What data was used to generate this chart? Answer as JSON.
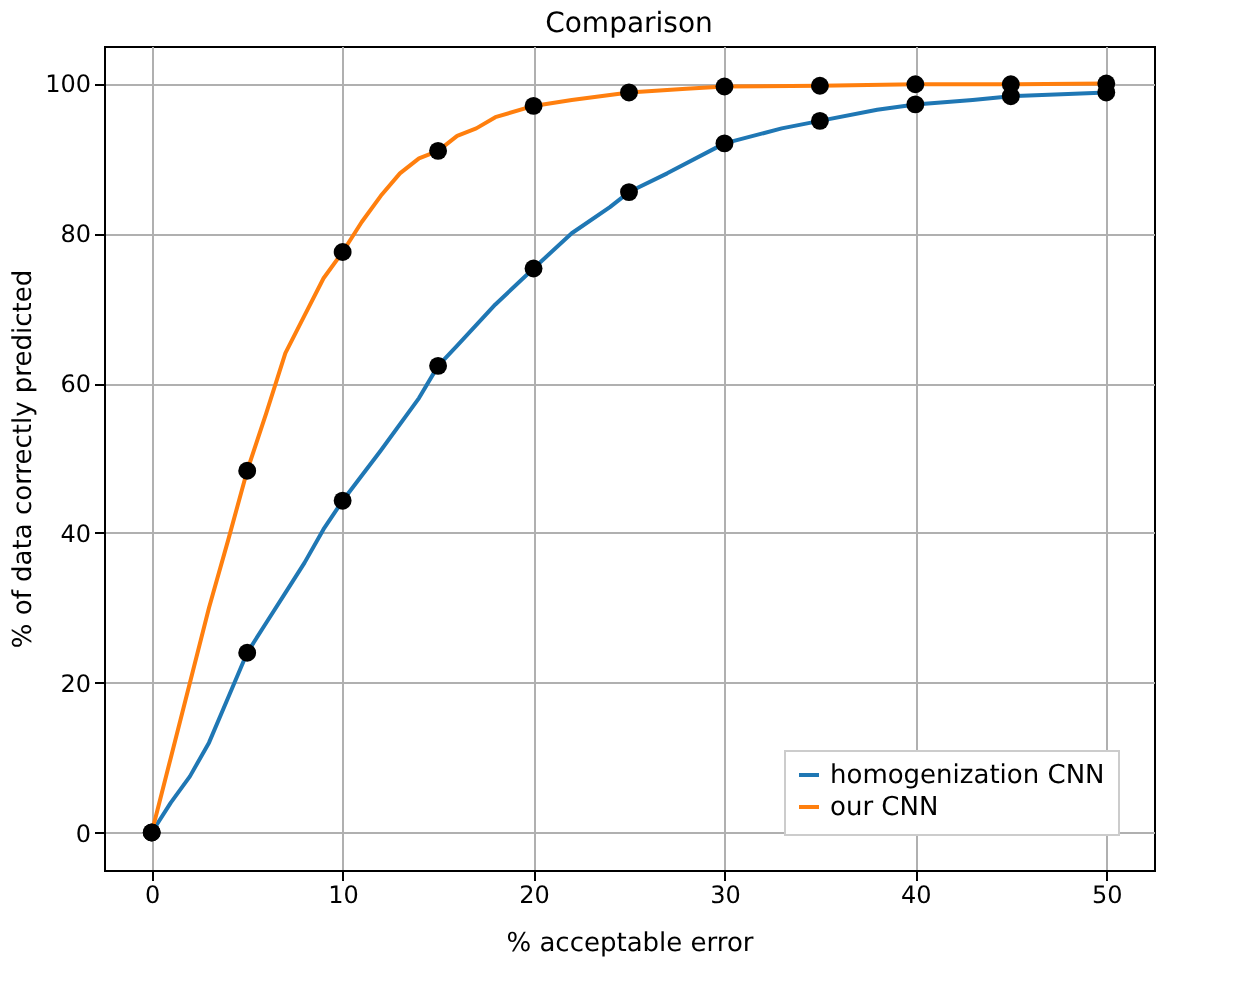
{
  "chart_data": {
    "type": "line",
    "title": "Comparison",
    "xlabel": "% acceptable error",
    "ylabel": "% of data correctly predicted",
    "xlim": [
      -2.5,
      52.5
    ],
    "ylim": [
      -5,
      105
    ],
    "xticks": [
      0,
      10,
      20,
      30,
      40,
      50
    ],
    "yticks": [
      0,
      20,
      40,
      60,
      80,
      100
    ],
    "grid": true,
    "legend": "bottom right",
    "series": [
      {
        "name": "homogenization CNN",
        "color": "#1f77b4",
        "marker": "none",
        "x": [
          0,
          1,
          2,
          3,
          4,
          5,
          6,
          7,
          8,
          9,
          10,
          12,
          14,
          15,
          16,
          18,
          20,
          22,
          24,
          25,
          27,
          30,
          33,
          35,
          38,
          40,
          43,
          45,
          48,
          50
        ],
        "values": [
          0,
          4,
          7.5,
          12,
          18,
          24,
          28,
          32,
          36,
          40.5,
          44.3,
          51,
          58,
          62.3,
          65,
          70.5,
          75.3,
          80,
          83.5,
          85.5,
          88,
          92,
          94,
          95,
          96.5,
          97.2,
          97.8,
          98.3,
          98.6,
          98.8
        ]
      },
      {
        "name": "our CNN",
        "color": "#ff7f0e",
        "marker": "none",
        "x": [
          0,
          1,
          2,
          3,
          4,
          5,
          6,
          7,
          8,
          9,
          10,
          11,
          12,
          13,
          14,
          15,
          16,
          17,
          18,
          20,
          22,
          25,
          28,
          30,
          35,
          40,
          45,
          50
        ],
        "values": [
          0,
          10,
          20,
          30,
          39,
          48.3,
          56,
          64,
          69,
          74,
          77.5,
          81.5,
          85,
          88,
          90,
          91,
          93,
          94,
          95.5,
          97,
          97.8,
          98.8,
          99.3,
          99.6,
          99.7,
          99.9,
          99.9,
          100
        ]
      },
      {
        "color": "#000000",
        "type": "scatter",
        "marker": "circle",
        "x": [
          0,
          5,
          10,
          15,
          20,
          25,
          30,
          35,
          40,
          45,
          50
        ],
        "values": [
          0,
          24,
          44.3,
          62.3,
          75.3,
          85.5,
          92,
          95,
          97.2,
          98.3,
          98.8
        ]
      },
      {
        "color": "#000000",
        "type": "scatter",
        "marker": "circle",
        "x": [
          0,
          5,
          10,
          15,
          20,
          25,
          30,
          35,
          40,
          45,
          50
        ],
        "values": [
          0,
          48.3,
          77.5,
          91,
          97,
          98.8,
          99.6,
          99.7,
          99.9,
          99.9,
          100
        ]
      }
    ]
  }
}
